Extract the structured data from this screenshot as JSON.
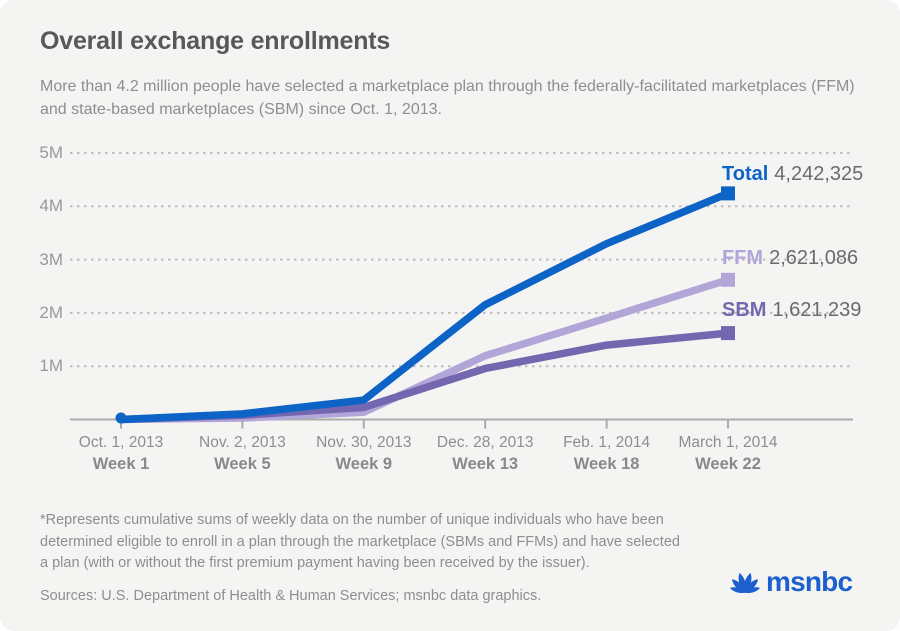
{
  "page": {
    "title": "Overall exchange enrollments",
    "subtitle": "More than 4.2 million people have selected a marketplace plan through the federally-facilitated marketplaces (FFM) and state-based marketplaces (SBM) since Oct. 1, 2013.",
    "footnote": "*Represents cumulative sums of weekly data on the number of unique individuals who have been determined eligible to enroll in a plan through the marketplace (SBMs and FFMs) and have selected a plan (with or without the first premium payment having been received by the issuer).",
    "sources": "Sources: U.S. Department of Health & Human Services; msnbc data graphics.",
    "logo_text": "msnbc",
    "logo_icon": "nbc-peacock-icon"
  },
  "colors": {
    "background": "#f4f4f3",
    "total": "#0d63c6",
    "ffm": "#b2a5d7",
    "sbm": "#7567af",
    "value_text": "#6b6b6d",
    "grid_dots": "#bcbcbc",
    "axis": "#ababab",
    "title_text": "#58585a",
    "muted_text": "#8e8e90",
    "logo_blue": "#1c5fce"
  },
  "chart_data": {
    "type": "line",
    "title": "Overall exchange enrollments",
    "x_ticks": [
      {
        "date": "Oct. 1, 2013",
        "week": "Week 1"
      },
      {
        "date": "Nov. 2, 2013",
        "week": "Week 5"
      },
      {
        "date": "Nov. 30, 2013",
        "week": "Week 9"
      },
      {
        "date": "Dec. 28, 2013",
        "week": "Week 13"
      },
      {
        "date": "Feb. 1, 2014",
        "week": "Week 18"
      },
      {
        "date": "March 1, 2014",
        "week": "Week 22"
      }
    ],
    "y_tick_labels": [
      "5M",
      "4M",
      "3M",
      "2M",
      "1M"
    ],
    "ylim": [
      0,
      5000000
    ],
    "grid": "horizontal dotted lines at 1M intervals",
    "legend_position": "end-of-line labels at right",
    "series": [
      {
        "name": "Total",
        "color": "#0d63c6",
        "end_label": "4,242,325",
        "values": [
          0,
          106000,
          365000,
          2153000,
          3299000,
          4242325
        ]
      },
      {
        "name": "FFM",
        "color": "#b2a5d7",
        "end_label": "2,621,086",
        "values": [
          0,
          27000,
          137000,
          1196000,
          1903000,
          2621086
        ]
      },
      {
        "name": "SBM",
        "color": "#7567af",
        "end_label": "1,621,239",
        "values": [
          0,
          79000,
          227000,
          957000,
          1396000,
          1621239
        ]
      }
    ]
  }
}
